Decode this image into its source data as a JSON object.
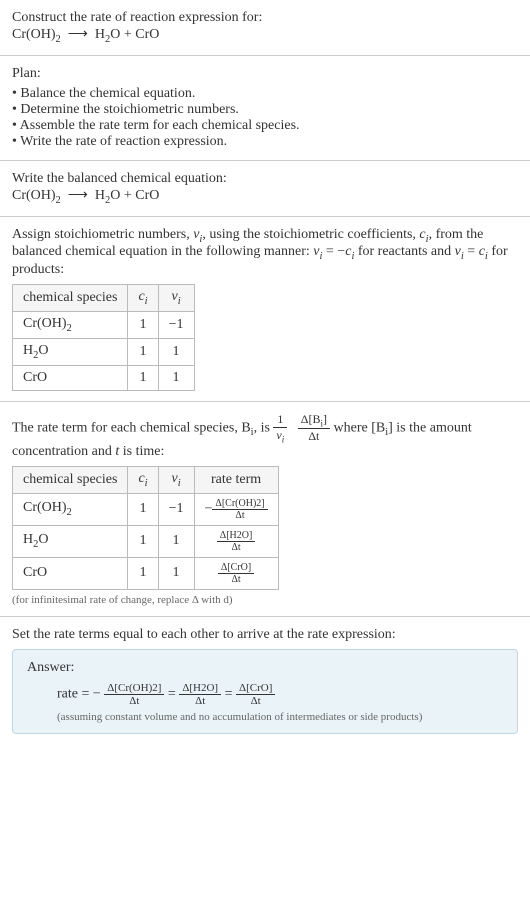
{
  "intro": {
    "title": "Construct the rate of reaction expression for:",
    "equation_lhs": "Cr(OH)",
    "equation_lhs_sub": "2",
    "arrow": "⟶",
    "equation_rhs_a": "H",
    "equation_rhs_a_sub": "2",
    "equation_rhs_b": "O + CrO"
  },
  "plan": {
    "label": "Plan:",
    "items": [
      "Balance the chemical equation.",
      "Determine the stoichiometric numbers.",
      "Assemble the rate term for each chemical species.",
      "Write the rate of reaction expression."
    ]
  },
  "balanced": {
    "label": "Write the balanced chemical equation:"
  },
  "stoich": {
    "text_a": "Assign stoichiometric numbers, ",
    "nu": "ν",
    "nu_sub": "i",
    "text_b": ", using the stoichiometric coefficients, ",
    "c": "c",
    "c_sub": "i",
    "text_c": ", from the balanced chemical equation in the following manner: ",
    "rel1_lhs": "ν",
    "rel1_eq": " = −",
    "rel1_rhs": "c",
    "text_d": " for reactants and ",
    "rel2_eq": " = ",
    "text_e": " for products:",
    "table": {
      "headers": [
        "chemical species",
        "c",
        "i",
        "ν",
        "i"
      ],
      "rows": [
        {
          "sp_a": "Cr(OH)",
          "sp_sub": "2",
          "c": "1",
          "nu": "−1"
        },
        {
          "sp_a": "H",
          "sp_sub": "2",
          "sp_b": "O",
          "c": "1",
          "nu": "1"
        },
        {
          "sp_a": "CrO",
          "sp_sub": "",
          "sp_b": "",
          "c": "1",
          "nu": "1"
        }
      ]
    }
  },
  "rateterm": {
    "text_a": "The rate term for each chemical species, B",
    "text_a_sub": "i",
    "text_b": ", is ",
    "frac1_num": "1",
    "frac1_den_a": "ν",
    "frac1_den_sub": "i",
    "frac2_num_a": "Δ[B",
    "frac2_num_sub": "i",
    "frac2_num_b": "]",
    "frac2_den": "Δt",
    "text_c": " where [B",
    "text_c_sub": "i",
    "text_d": "] is the amount concentration and ",
    "t": "t",
    "text_e": " is time:",
    "table": {
      "headers": [
        "chemical species",
        "c",
        "i",
        "ν",
        "i",
        "rate term"
      ],
      "rows": [
        {
          "sp_a": "Cr(OH)",
          "sp_sub": "2",
          "c": "1",
          "nu": "−1",
          "neg": "−",
          "num": "Δ[Cr(OH)2]",
          "den": "Δt"
        },
        {
          "sp_a": "H",
          "sp_sub": "2",
          "sp_b": "O",
          "c": "1",
          "nu": "1",
          "neg": "",
          "num": "Δ[H2O]",
          "den": "Δt"
        },
        {
          "sp_a": "CrO",
          "sp_sub": "",
          "sp_b": "",
          "c": "1",
          "nu": "1",
          "neg": "",
          "num": "Δ[CrO]",
          "den": "Δt"
        }
      ]
    },
    "note": "(for infinitesimal rate of change, replace Δ with d)"
  },
  "final": {
    "label": "Set the rate terms equal to each other to arrive at the rate expression:"
  },
  "answer": {
    "label": "Answer:",
    "rate": "rate = −",
    "f1_num": "Δ[Cr(OH)2]",
    "f1_den": "Δt",
    "eq": " = ",
    "f2_num": "Δ[H2O]",
    "f2_den": "Δt",
    "f3_num": "Δ[CrO]",
    "f3_den": "Δt",
    "assume": "(assuming constant volume and no accumulation of intermediates or side products)"
  },
  "style": {
    "answer_bg": "#eaf4f8",
    "answer_border": "#bcd8e4",
    "table_border": "#bbbbbb",
    "table_header_bg": "#f5f5f5"
  }
}
